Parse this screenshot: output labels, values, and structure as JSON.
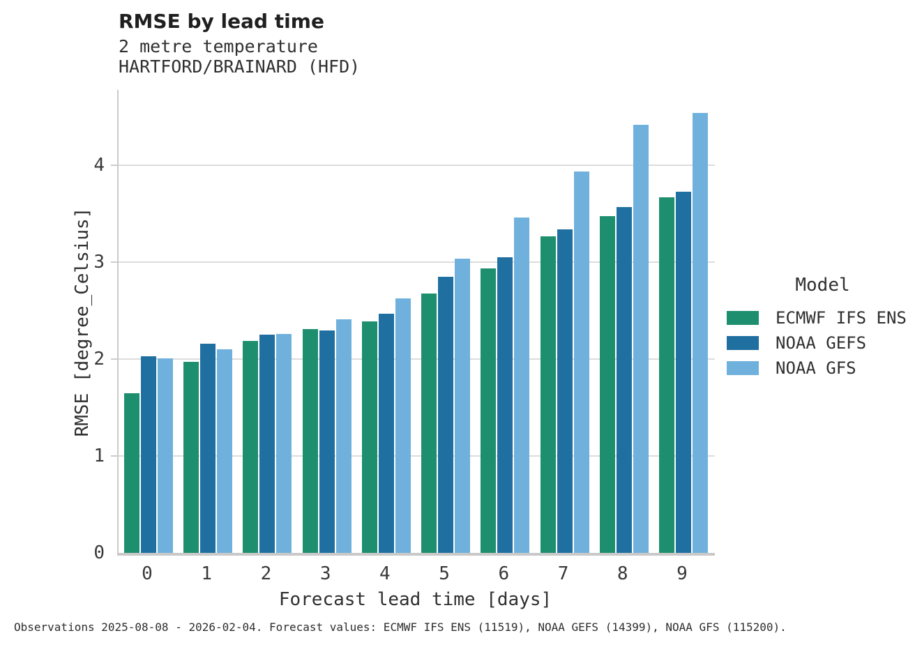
{
  "chart_data": {
    "type": "bar",
    "title": "RMSE by lead time",
    "subtitle_line1": "2 metre temperature",
    "subtitle_line2": "HARTFORD/BRAINARD (HFD)",
    "xlabel": "Forecast lead time [days]",
    "ylabel": "RMSE [degree_Celsius]",
    "legend_title": "Model",
    "legend_position": "right",
    "grid": "horizontal",
    "categories": [
      "0",
      "1",
      "2",
      "3",
      "4",
      "5",
      "6",
      "7",
      "8",
      "9"
    ],
    "yticks": [
      0,
      1,
      2,
      3,
      4
    ],
    "ylim": [
      0,
      4.78
    ],
    "series": [
      {
        "name": "ECMWF IFS ENS",
        "color": "#1e8f6e",
        "values": [
          1.65,
          1.97,
          2.19,
          2.31,
          2.39,
          2.68,
          2.94,
          3.27,
          3.48,
          3.67
        ]
      },
      {
        "name": "NOAA GEFS",
        "color": "#1f6fa0",
        "values": [
          2.03,
          2.16,
          2.25,
          2.3,
          2.47,
          2.85,
          3.05,
          3.34,
          3.57,
          3.73
        ]
      },
      {
        "name": "NOAA GFS",
        "color": "#6fb1dc",
        "values": [
          2.01,
          2.1,
          2.26,
          2.41,
          2.63,
          3.04,
          3.46,
          3.94,
          4.42,
          4.54
        ]
      }
    ],
    "caption": "Observations 2025-08-08 - 2026-02-04. Forecast values: ECMWF IFS ENS (11519), NOAA GEFS (14399), NOAA GFS (115200)."
  }
}
